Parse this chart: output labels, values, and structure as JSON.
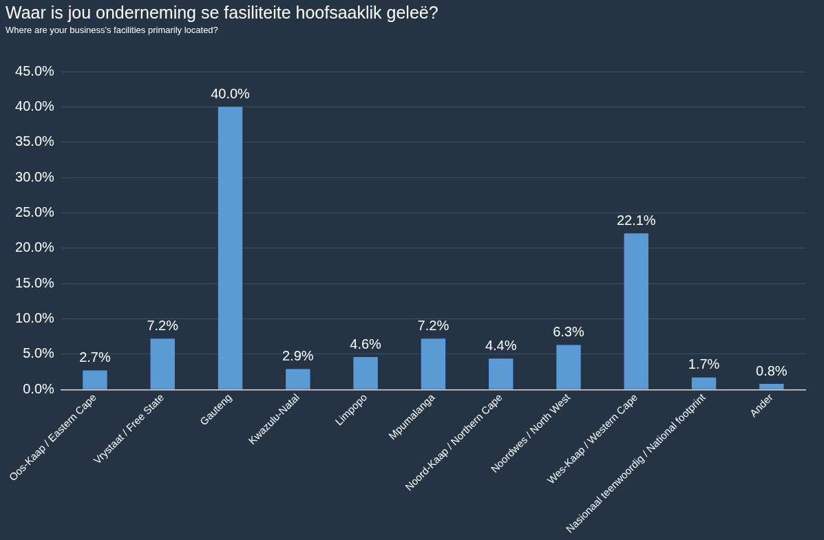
{
  "chart_data": {
    "type": "bar",
    "title": "Waar is jou onderneming se fasiliteite hoofsaaklik geleë?",
    "subtitle": "Where are your business's facilities primarily located?",
    "categories": [
      "Oos-Kaap / Eastern Cape",
      "Vrystaat / Free State",
      "Gauteng",
      "Kwazulu-Natal",
      "Limpopo",
      "Mpumalanga",
      "Noord-Kaap / Northern Cape",
      "Noordwes / North West",
      "Wes-Kaap / Western Cape",
      "Nasionaal teenwoordig / National footprint",
      "Ander"
    ],
    "values": [
      2.7,
      7.2,
      40.0,
      2.9,
      4.6,
      7.2,
      4.4,
      6.3,
      22.1,
      1.7,
      0.8
    ],
    "value_labels": [
      "2.7%",
      "7.2%",
      "40.0%",
      "2.9%",
      "4.6%",
      "7.2%",
      "4.4%",
      "6.3%",
      "22.1%",
      "1.7%",
      "0.8%"
    ],
    "color": "#5b9bd5",
    "ylim": [
      0,
      45
    ],
    "yticks": [
      {
        "value": 0,
        "label": "0.0%"
      },
      {
        "value": 5,
        "label": "5.0%"
      },
      {
        "value": 10,
        "label": "10.0%"
      },
      {
        "value": 15,
        "label": "15.0%"
      },
      {
        "value": 20,
        "label": "20.0%"
      },
      {
        "value": 25,
        "label": "25.0%"
      },
      {
        "value": 30,
        "label": "30.0%"
      },
      {
        "value": 35,
        "label": "35.0%"
      },
      {
        "value": 40,
        "label": "40.0%"
      },
      {
        "value": 45,
        "label": "45.0%"
      }
    ],
    "grid": "y",
    "legend": false
  }
}
